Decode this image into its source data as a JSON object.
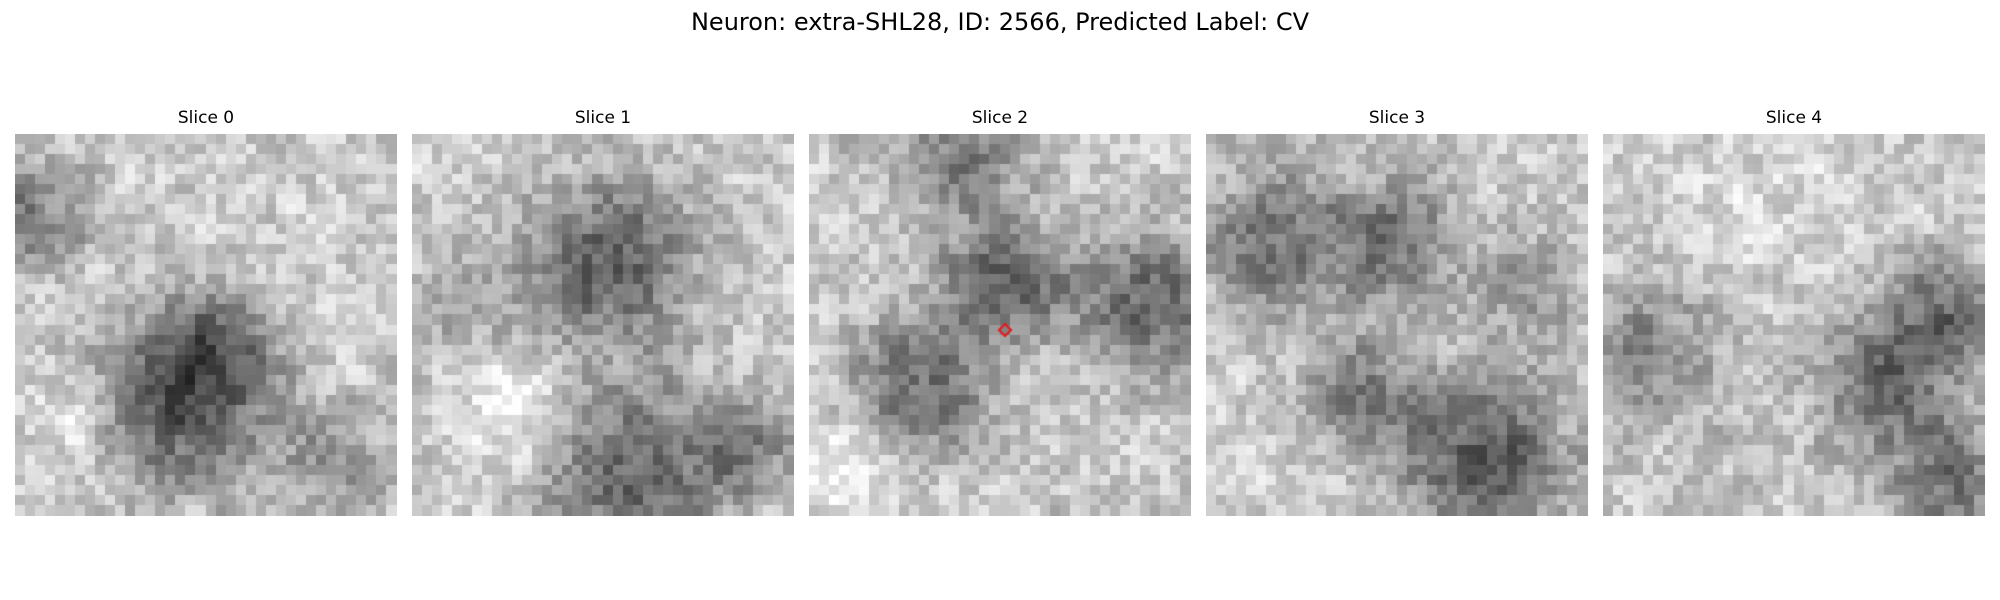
{
  "figure": {
    "title": "Neuron: extra-SHL28, ID: 2566, Predicted Label: CV"
  },
  "image_grid": {
    "rows": 38,
    "cols": 38,
    "colormap": "grayscale"
  },
  "marker": {
    "shape": "diamond",
    "color": "#e41a1c",
    "slice_index": 2,
    "row": 19,
    "col": 19
  },
  "slices": [
    {
      "label": "Slice 0",
      "seed": 11,
      "blobs": [
        [
          0.45,
          0.7,
          0.16,
          0.62
        ],
        [
          0.52,
          0.56,
          0.1,
          0.35
        ],
        [
          0.05,
          0.22,
          0.1,
          0.45
        ],
        [
          0.85,
          0.85,
          0.1,
          0.3
        ],
        [
          0.15,
          0.75,
          0.08,
          -0.2
        ]
      ]
    },
    {
      "label": "Slice 1",
      "seed": 23,
      "blobs": [
        [
          0.52,
          0.34,
          0.15,
          0.6
        ],
        [
          0.58,
          0.88,
          0.16,
          0.55
        ],
        [
          0.88,
          0.82,
          0.1,
          0.35
        ],
        [
          0.15,
          0.45,
          0.1,
          0.2
        ],
        [
          0.28,
          0.72,
          0.1,
          -0.25
        ]
      ]
    },
    {
      "label": "Slice 2",
      "seed": 37,
      "blobs": [
        [
          0.52,
          0.4,
          0.12,
          0.55
        ],
        [
          0.3,
          0.66,
          0.13,
          0.5
        ],
        [
          0.9,
          0.45,
          0.13,
          0.55
        ],
        [
          0.4,
          0.06,
          0.12,
          0.4
        ],
        [
          0.1,
          0.9,
          0.1,
          -0.25
        ],
        [
          0.55,
          0.58,
          0.08,
          -0.1
        ]
      ]
    },
    {
      "label": "Slice 3",
      "seed": 53,
      "blobs": [
        [
          0.18,
          0.28,
          0.14,
          0.45
        ],
        [
          0.5,
          0.28,
          0.12,
          0.45
        ],
        [
          0.4,
          0.68,
          0.1,
          0.4
        ],
        [
          0.72,
          0.85,
          0.16,
          0.6
        ],
        [
          0.85,
          0.4,
          0.1,
          0.25
        ]
      ]
    },
    {
      "label": "Slice 4",
      "seed": 71,
      "blobs": [
        [
          0.75,
          0.66,
          0.13,
          0.55
        ],
        [
          0.12,
          0.58,
          0.13,
          0.4
        ],
        [
          0.9,
          0.45,
          0.1,
          0.45
        ],
        [
          0.92,
          0.92,
          0.1,
          0.45
        ],
        [
          0.4,
          0.2,
          0.12,
          -0.1
        ]
      ]
    }
  ]
}
